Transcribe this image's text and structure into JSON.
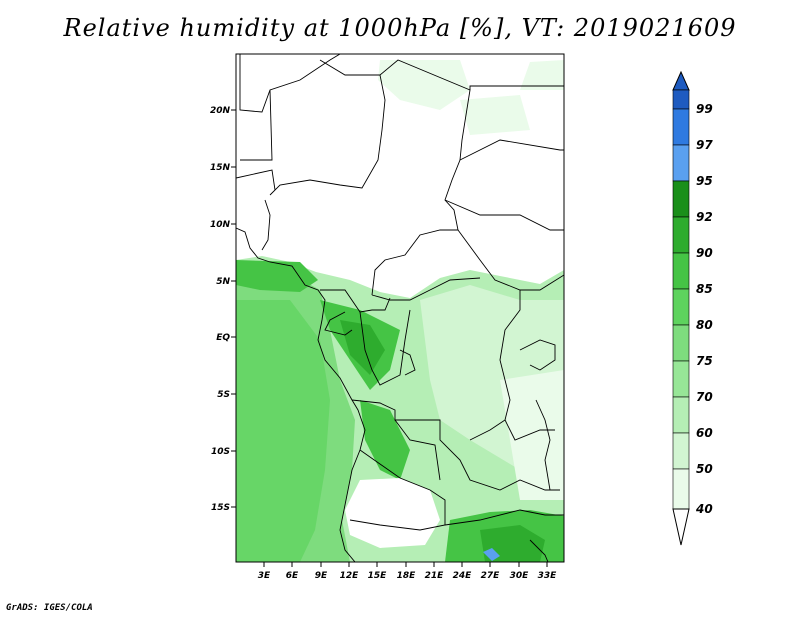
{
  "title": "Relative humidity at 1000hPa [%], VT: 2019021609",
  "credit": "GrADS: IGES/COLA",
  "map": {
    "lat_ticks": [
      "20N",
      "15N",
      "10N",
      "5N",
      "EQ",
      "5S",
      "10S",
      "15S"
    ],
    "lon_ticks": [
      "3E",
      "6E",
      "9E",
      "12E",
      "15E",
      "18E",
      "21E",
      "24E",
      "27E",
      "30E",
      "33E"
    ]
  },
  "colorbar": {
    "labels": [
      "99",
      "97",
      "95",
      "92",
      "90",
      "85",
      "80",
      "75",
      "70",
      "60",
      "50",
      "40"
    ],
    "colors": {
      "lt40": "#ffffff",
      "40-50": "#eafbea",
      "50-60": "#d2f5d2",
      "60-70": "#b5eeb5",
      "70-75": "#97e697",
      "75-80": "#7edc7e",
      "80-85": "#5ed35e",
      "85-90": "#45c445",
      "90-92": "#2eac2e",
      "92-95": "#1a8f1a",
      "95-97": "#5aa0f0",
      "97-99": "#2f7ae0",
      "gt99": "#1e5bc0"
    }
  }
}
